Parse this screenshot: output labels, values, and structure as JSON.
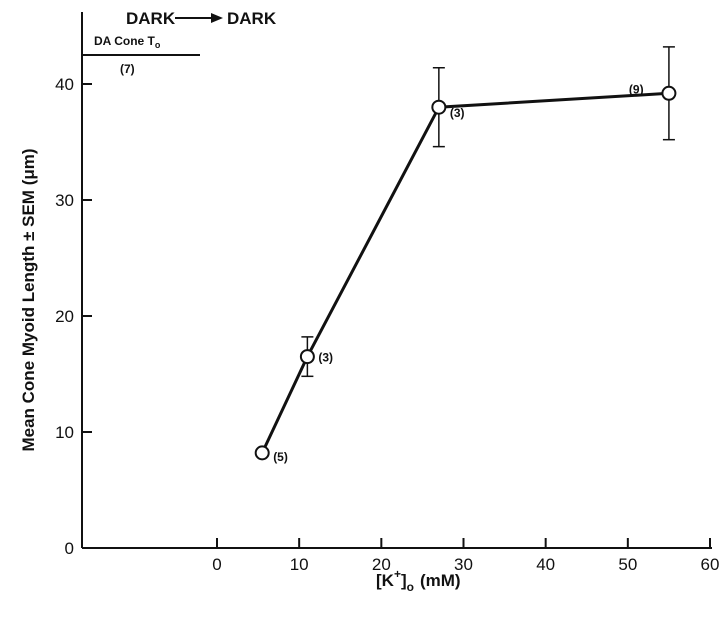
{
  "chart_data": {
    "type": "line",
    "title": "DARK → DARK",
    "title_left": "DARK",
    "title_right": "DARK",
    "xlabel_base": "[K",
    "xlabel_sup": "+",
    "xlabel_bracket": "]",
    "xlabel_sub": "o",
    "xlabel_unit": "(mM)",
    "ylabel": "Mean Cone Myoid Length ± SEM (μm)",
    "xlim": [
      0,
      60
    ],
    "ylim": [
      0,
      45
    ],
    "xticks": [
      0,
      10,
      20,
      30,
      40,
      50,
      60
    ],
    "yticks": [
      0,
      10,
      20,
      30,
      40
    ],
    "grid": false,
    "series": [
      {
        "x": [
          5.5,
          11,
          27,
          55
        ],
        "y": [
          8.2,
          16.5,
          38.0,
          39.2
        ],
        "sem": [
          0,
          1.7,
          3.4,
          4.0
        ],
        "n_labels": [
          "(5)",
          "(3)",
          "(3)",
          "(9)"
        ]
      }
    ],
    "reference": {
      "label": "DA Cone T",
      "label_sub": "o",
      "value": 42.5,
      "n_label": "(7)"
    }
  }
}
